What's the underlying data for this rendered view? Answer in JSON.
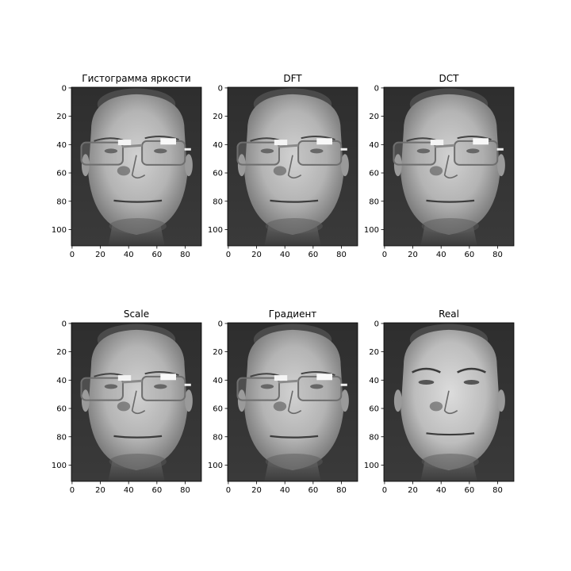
{
  "figure": {
    "panels": [
      {
        "id": "histogram",
        "title": "Гистограмма яркости",
        "face": "glasses"
      },
      {
        "id": "dft",
        "title": "DFT",
        "face": "glasses"
      },
      {
        "id": "dct",
        "title": "DCT",
        "face": "glasses"
      },
      {
        "id": "scale",
        "title": "Scale",
        "face": "glasses"
      },
      {
        "id": "gradient",
        "title": "Градиент",
        "face": "glasses"
      },
      {
        "id": "real",
        "title": "Real",
        "face": "no-glasses"
      }
    ],
    "x_ticks": [
      "0",
      "20",
      "40",
      "60",
      "80"
    ],
    "y_ticks": [
      "0",
      "20",
      "40",
      "60",
      "80",
      "100"
    ],
    "image_extent": {
      "width": 92,
      "height": 112
    },
    "colormap": "gray"
  }
}
